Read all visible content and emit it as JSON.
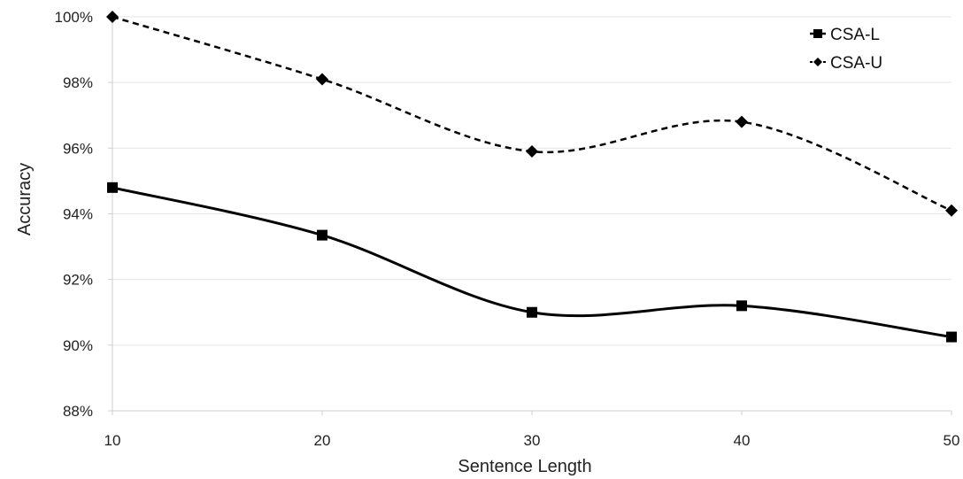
{
  "chart_data": {
    "type": "line",
    "title": "",
    "xlabel": "Sentence Length",
    "ylabel": "Accuracy",
    "categories": [
      10,
      20,
      30,
      40,
      50
    ],
    "x_tick_labels": [
      "10",
      "20",
      "30",
      "40",
      "50"
    ],
    "y_ticks": [
      88,
      90,
      92,
      94,
      96,
      98,
      100
    ],
    "y_tick_labels": [
      "88%",
      "90%",
      "92%",
      "94%",
      "96%",
      "98%",
      "100%"
    ],
    "ylim": [
      88,
      100
    ],
    "xlim": [
      10,
      50
    ],
    "grid": true,
    "legend_position": "top-right",
    "series": [
      {
        "name": "CSA-L",
        "values": [
          94.8,
          93.35,
          91.0,
          91.2,
          90.25
        ],
        "line_style": "solid",
        "marker": "square",
        "color": "#000000"
      },
      {
        "name": "CSA-U",
        "values": [
          100.0,
          98.1,
          95.9,
          96.8,
          94.1
        ],
        "line_style": "dashed",
        "marker": "diamond",
        "color": "#000000"
      }
    ]
  }
}
